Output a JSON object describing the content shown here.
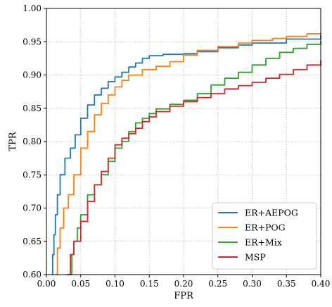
{
  "chart_data": {
    "type": "line",
    "xlabel": "FPR",
    "ylabel": "TPR",
    "xlim": [
      0.0,
      0.4
    ],
    "ylim": [
      0.6,
      1.0
    ],
    "xticks": [
      "0.00",
      "0.05",
      "0.10",
      "0.15",
      "0.20",
      "0.25",
      "0.30",
      "0.35",
      "0.40"
    ],
    "yticks": [
      "0.60",
      "0.65",
      "0.70",
      "0.75",
      "0.80",
      "0.85",
      "0.90",
      "0.95",
      "1.00"
    ],
    "grid": true,
    "legend_position": "bottom-right",
    "series": [
      {
        "name": "ER+AEPOG",
        "color": "#1f77b4",
        "points": [
          [
            0.008,
            0.6
          ],
          [
            0.009,
            0.63
          ],
          [
            0.011,
            0.66
          ],
          [
            0.013,
            0.69
          ],
          [
            0.016,
            0.72
          ],
          [
            0.02,
            0.75
          ],
          [
            0.027,
            0.775
          ],
          [
            0.035,
            0.79
          ],
          [
            0.042,
            0.81
          ],
          [
            0.05,
            0.835
          ],
          [
            0.06,
            0.855
          ],
          [
            0.07,
            0.87
          ],
          [
            0.08,
            0.88
          ],
          [
            0.09,
            0.89
          ],
          [
            0.1,
            0.897
          ],
          [
            0.11,
            0.904
          ],
          [
            0.12,
            0.912
          ],
          [
            0.13,
            0.918
          ],
          [
            0.14,
            0.925
          ],
          [
            0.15,
            0.929
          ],
          [
            0.17,
            0.931
          ],
          [
            0.2,
            0.932
          ],
          [
            0.22,
            0.935
          ],
          [
            0.25,
            0.941
          ],
          [
            0.28,
            0.945
          ],
          [
            0.3,
            0.948
          ],
          [
            0.35,
            0.954
          ],
          [
            0.4,
            0.96
          ]
        ]
      },
      {
        "name": "ER+POG",
        "color": "#ff7f0e",
        "points": [
          [
            0.013,
            0.6
          ],
          [
            0.016,
            0.64
          ],
          [
            0.02,
            0.67
          ],
          [
            0.025,
            0.7
          ],
          [
            0.032,
            0.72
          ],
          [
            0.04,
            0.75
          ],
          [
            0.05,
            0.79
          ],
          [
            0.06,
            0.815
          ],
          [
            0.07,
            0.84
          ],
          [
            0.08,
            0.857
          ],
          [
            0.09,
            0.87
          ],
          [
            0.1,
            0.882
          ],
          [
            0.11,
            0.892
          ],
          [
            0.12,
            0.9
          ],
          [
            0.14,
            0.908
          ],
          [
            0.16,
            0.913
          ],
          [
            0.18,
            0.92
          ],
          [
            0.2,
            0.93
          ],
          [
            0.22,
            0.937
          ],
          [
            0.25,
            0.943
          ],
          [
            0.28,
            0.948
          ],
          [
            0.3,
            0.952
          ],
          [
            0.33,
            0.955
          ],
          [
            0.35,
            0.958
          ],
          [
            0.38,
            0.962
          ],
          [
            0.4,
            0.964
          ]
        ]
      },
      {
        "name": "ER+Mix",
        "color": "#2ca02c",
        "points": [
          [
            0.035,
            0.6
          ],
          [
            0.037,
            0.63
          ],
          [
            0.04,
            0.65
          ],
          [
            0.045,
            0.67
          ],
          [
            0.05,
            0.69
          ],
          [
            0.06,
            0.72
          ],
          [
            0.07,
            0.735
          ],
          [
            0.08,
            0.75
          ],
          [
            0.09,
            0.77
          ],
          [
            0.1,
            0.79
          ],
          [
            0.11,
            0.8
          ],
          [
            0.12,
            0.815
          ],
          [
            0.13,
            0.828
          ],
          [
            0.14,
            0.835
          ],
          [
            0.15,
            0.842
          ],
          [
            0.16,
            0.849
          ],
          [
            0.18,
            0.856
          ],
          [
            0.2,
            0.862
          ],
          [
            0.22,
            0.872
          ],
          [
            0.24,
            0.885
          ],
          [
            0.26,
            0.895
          ],
          [
            0.28,
            0.904
          ],
          [
            0.3,
            0.915
          ],
          [
            0.32,
            0.925
          ],
          [
            0.34,
            0.934
          ],
          [
            0.36,
            0.94
          ],
          [
            0.38,
            0.946
          ],
          [
            0.4,
            0.951
          ]
        ]
      },
      {
        "name": "MSP",
        "color": "#d62728",
        "points": [
          [
            0.03,
            0.6
          ],
          [
            0.035,
            0.63
          ],
          [
            0.04,
            0.65
          ],
          [
            0.05,
            0.68
          ],
          [
            0.06,
            0.71
          ],
          [
            0.07,
            0.735
          ],
          [
            0.08,
            0.755
          ],
          [
            0.09,
            0.775
          ],
          [
            0.1,
            0.795
          ],
          [
            0.11,
            0.805
          ],
          [
            0.12,
            0.812
          ],
          [
            0.13,
            0.82
          ],
          [
            0.14,
            0.83
          ],
          [
            0.15,
            0.837
          ],
          [
            0.16,
            0.845
          ],
          [
            0.18,
            0.853
          ],
          [
            0.2,
            0.86
          ],
          [
            0.22,
            0.866
          ],
          [
            0.24,
            0.872
          ],
          [
            0.26,
            0.879
          ],
          [
            0.28,
            0.884
          ],
          [
            0.3,
            0.889
          ],
          [
            0.32,
            0.895
          ],
          [
            0.34,
            0.901
          ],
          [
            0.36,
            0.908
          ],
          [
            0.38,
            0.915
          ],
          [
            0.4,
            0.922
          ]
        ]
      }
    ]
  }
}
